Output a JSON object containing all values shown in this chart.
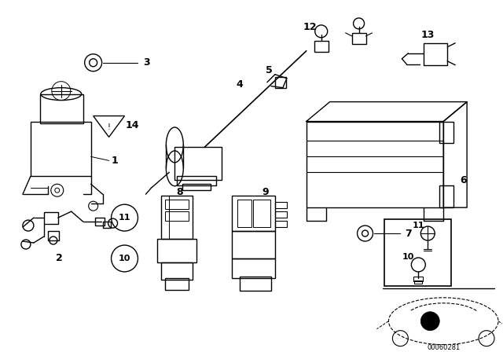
{
  "bg_color": "#ffffff",
  "line_color": "#000000",
  "diagram_id": "00060281",
  "figsize": [
    6.4,
    4.48
  ],
  "dpi": 100
}
